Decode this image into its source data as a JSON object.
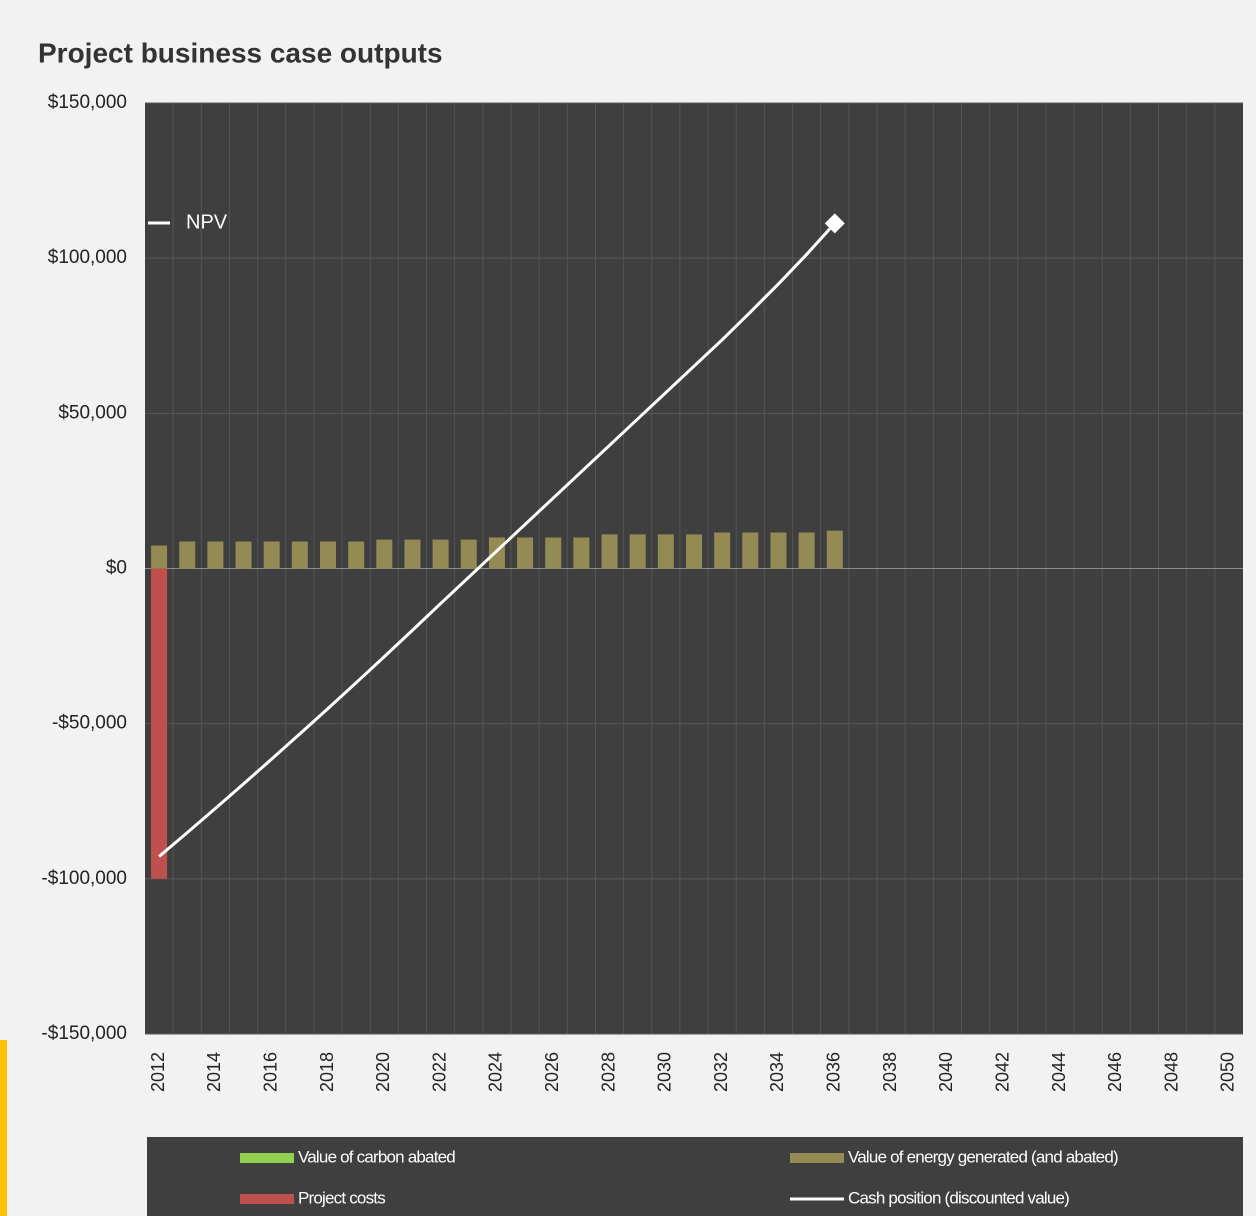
{
  "chart_data": {
    "type": "bar",
    "title": "Project business case outputs",
    "categories": [
      2012,
      null,
      2014,
      null,
      2016,
      null,
      2018,
      null,
      2020,
      null,
      2022,
      null,
      2024,
      null,
      2026,
      null,
      2028,
      null,
      2030,
      null,
      2032,
      null,
      2034,
      null,
      2036,
      null,
      2038,
      null,
      2040,
      null,
      2042,
      null,
      2044,
      null,
      2046,
      null,
      2048,
      null,
      2050
    ],
    "ylim": [
      -150000,
      150000
    ],
    "yticks": [
      {
        "value": 150000,
        "label": "$150,000"
      },
      {
        "value": 100000,
        "label": "$100,000"
      },
      {
        "value": 50000,
        "label": "$50,000"
      },
      {
        "value": 0,
        "label": "$0"
      },
      {
        "value": -50000,
        "label": "-$50,000"
      },
      {
        "value": -100000,
        "label": "-$100,000"
      },
      {
        "value": -150000,
        "label": "-$150,000"
      }
    ],
    "grid": true,
    "series": [
      {
        "name": "Value of carbon abated",
        "type": "bar",
        "color": "#92d050",
        "values": [
          null,
          null,
          null,
          null,
          null,
          null,
          null,
          null,
          null,
          null,
          null,
          null,
          null,
          null,
          null,
          null,
          null,
          null,
          null,
          null,
          null,
          null,
          null,
          null,
          null,
          null,
          null,
          null,
          null,
          null,
          null,
          null,
          null,
          null,
          null,
          null,
          null,
          null,
          null
        ]
      },
      {
        "name": "Value of energy generated (and abated)",
        "type": "bar",
        "color": "#948a54",
        "values": [
          7400,
          8700,
          8700,
          8700,
          8700,
          8700,
          8700,
          8700,
          9300,
          9300,
          9300,
          9300,
          10000,
          10000,
          10000,
          10000,
          11000,
          11000,
          11000,
          11000,
          11600,
          11600,
          11600,
          11600,
          12200,
          null,
          null,
          null,
          null,
          null,
          null,
          null,
          null,
          null,
          null,
          null,
          null,
          null,
          null
        ]
      },
      {
        "name": "Project costs",
        "type": "bar",
        "color": "#c0504d",
        "values": [
          -100000,
          null,
          null,
          null,
          null,
          null,
          null,
          null,
          null,
          null,
          null,
          null,
          null,
          null,
          null,
          null,
          null,
          null,
          null,
          null,
          null,
          null,
          null,
          null,
          null,
          null,
          null,
          null,
          null,
          null,
          null,
          null,
          null,
          null,
          null,
          null,
          null,
          null,
          null
        ]
      },
      {
        "name": "Cash position (discounted value)",
        "type": "line",
        "color": "#ffffff",
        "values": [
          -92800,
          -85100,
          -77300,
          -69400,
          -61400,
          -53300,
          -45100,
          -36800,
          -28400,
          -19900,
          -11300,
          -2800,
          5700,
          14200,
          22700,
          31200,
          39700,
          48200,
          56700,
          65200,
          73700,
          82600,
          91700,
          101200,
          111200,
          null,
          null,
          null,
          null,
          null,
          null,
          null,
          null,
          null,
          null,
          null,
          null,
          null,
          null
        ]
      },
      {
        "name": "NPV",
        "type": "marker",
        "color": "#ffffff",
        "values": [
          null,
          null,
          null,
          null,
          null,
          null,
          null,
          null,
          null,
          null,
          null,
          null,
          null,
          null,
          null,
          null,
          null,
          null,
          null,
          null,
          null,
          null,
          null,
          null,
          111200,
          null,
          null,
          null,
          null,
          null,
          null,
          null,
          null,
          null,
          null,
          null,
          null,
          null,
          null
        ]
      }
    ]
  }
}
